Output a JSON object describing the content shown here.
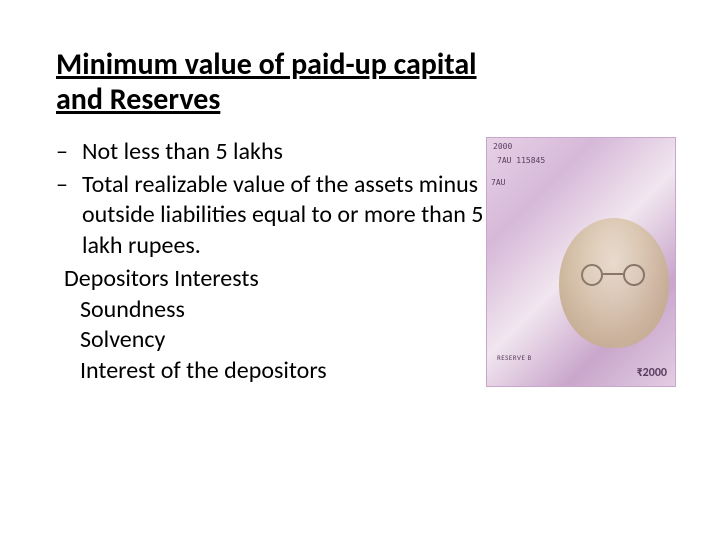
{
  "title": "Minimum value of paid-up capital and Reserves",
  "bullets": [
    "Not less than 5 lakhs",
    "Total realizable value of the assets minus outside liabilities equal to or more than 5 lakh rupees."
  ],
  "sub_heading": "Depositors Interests",
  "sub_items": [
    "Soundness",
    "Solvency",
    "Interest of the depositors"
  ],
  "image": {
    "alt": "Indian 2000 rupee currency notes",
    "overlay_text_1": "2000",
    "overlay_text_2": "7AU 115845",
    "overlay_text_3": "7AU",
    "rbi_text": "RESERVE B",
    "denom": "₹2000"
  },
  "colors": {
    "text": "#000000",
    "background": "#ffffff",
    "note_purple": "#c9a6cc"
  },
  "fontsizes": {
    "title": 30,
    "body": 24
  }
}
